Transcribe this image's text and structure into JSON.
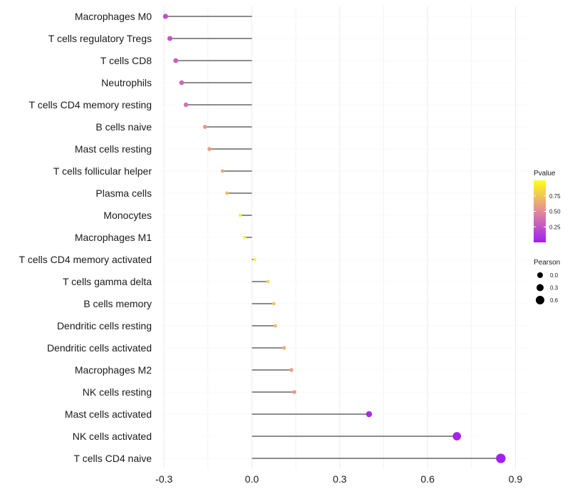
{
  "chart_data": {
    "type": "lollipop",
    "title": "",
    "xlabel": "",
    "ylabel": "",
    "xlim": [
      -0.32,
      0.95
    ],
    "x_ticks": [
      -0.3,
      0.0,
      0.3,
      0.6,
      0.9
    ],
    "x_tick_labels": [
      "-0.3",
      "0.0",
      "0.3",
      "0.6",
      "0.9"
    ],
    "grid": true,
    "categories": [
      "Macrophages M0",
      "T cells regulatory  Tregs",
      "T cells CD8",
      "Neutrophils",
      "T cells CD4 memory resting",
      "B cells naive",
      "Mast cells resting",
      "T cells follicular helper",
      "Plasma cells",
      "Monocytes",
      "Macrophages M1",
      "T cells CD4 memory activated",
      "T cells gamma delta",
      "B cells memory",
      "Dendritic cells resting",
      "Dendritic cells activated",
      "Macrophages M2",
      "NK cells resting",
      "Mast cells activated",
      "NK cells activated",
      "T cells CD4 naive"
    ],
    "values": [
      -0.295,
      -0.28,
      -0.26,
      -0.24,
      -0.225,
      -0.16,
      -0.145,
      -0.1,
      -0.085,
      -0.04,
      -0.025,
      0.01,
      0.055,
      0.075,
      0.08,
      0.11,
      0.135,
      0.145,
      0.4,
      0.7,
      0.85
    ],
    "pvalues": [
      0.22,
      0.25,
      0.3,
      0.35,
      0.38,
      0.55,
      0.58,
      0.65,
      0.72,
      0.92,
      0.95,
      0.98,
      0.82,
      0.75,
      0.72,
      0.65,
      0.6,
      0.58,
      0.05,
      0.02,
      0.01
    ],
    "legend": {
      "color_title": "Pvalue",
      "color_ticks": [
        0.25,
        0.5,
        0.75
      ],
      "color_tick_labels": [
        "0.25",
        "0.50",
        "0.75"
      ],
      "color_range": [
        0.0,
        1.0
      ],
      "color_low": "#a020f0",
      "color_mid": "#e3899c",
      "color_high": "#ffff14",
      "size_title": "Pearson",
      "size_values": [
        0.0,
        0.3,
        0.6
      ],
      "size_labels": [
        "0.0",
        "0.3",
        "0.6"
      ],
      "placement": "right"
    }
  },
  "colors": {
    "grid": "#ebebeb",
    "segment": "#1a1a1a",
    "background": "#ffffff"
  }
}
